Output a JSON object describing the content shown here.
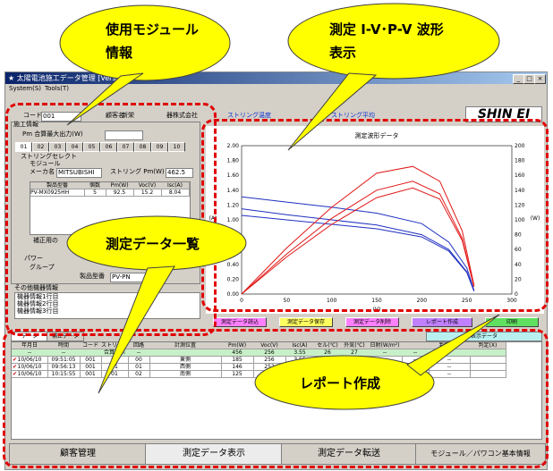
{
  "window": {
    "title": "★ 太陽電池施工データ管理  [Version",
    "menu": [
      "System(S)",
      "Tools(T)"
    ],
    "logo": "SHIN EI",
    "controls": [
      "_",
      "□",
      "×"
    ]
  },
  "header": {
    "code_label": "コード",
    "code_value": "001",
    "customer_label": "顧客名",
    "customer_value": "新栄",
    "company_value": "器株式会社",
    "blue_left": "ストリング温度",
    "blue_right": "ストリング平均"
  },
  "info": {
    "section_label": "施工情報",
    "pm_label": "Pm 合算最大出力(W)",
    "tabs": [
      "01",
      "02",
      "03",
      "04",
      "05",
      "06",
      "07",
      "08",
      "09",
      "10"
    ],
    "string_select": "ストリングセレクト",
    "module_label": "モジュール",
    "maker_label": "メーカ名",
    "maker_value": "MITSUBISHI",
    "string_pm_label": "ストリング Pm(W)",
    "string_pm_value": "462.5",
    "table_headers": [
      "製品型番",
      "個数",
      "Pm(W)",
      "Voc(V)",
      "Isc(A)"
    ],
    "table_row": [
      "PV-MX0925HH",
      "5",
      "92.5",
      "15.2",
      "8.04"
    ],
    "correction_label": "補正用の",
    "power_label": "パワー",
    "group_label": "グループ",
    "product_label": "製品型番",
    "product_value": "PV-PN",
    "other_label": "その他機器情報",
    "other_rows": [
      "機器情報1行目",
      "機器情報2行目",
      "機器情報3行目"
    ]
  },
  "chart_data": {
    "type": "line",
    "title": "測定波形データ",
    "xlabel": "(V)",
    "ylabel_left": "(A)",
    "ylabel_right": "(W)",
    "xlim": [
      0,
      300
    ],
    "ylim_left": [
      0,
      2.0
    ],
    "ylim_right": [
      0,
      200
    ],
    "xticks": [
      "0",
      "50",
      "100",
      "150",
      "200",
      "250",
      "300"
    ],
    "yticks_left": [
      "0.00",
      "0.20",
      "0.40",
      "0.60",
      "0.80",
      "1.00",
      "1.20",
      "1.40",
      "1.60",
      "1.80",
      "2.00"
    ],
    "yticks_right": [
      "0",
      "20",
      "40",
      "60",
      "80",
      "100",
      "120",
      "140",
      "160",
      "180",
      "200"
    ],
    "series": [
      {
        "color": "#2030c0",
        "axis": "left",
        "x": [
          0,
          50,
          100,
          150,
          200,
          230,
          250,
          258
        ],
        "y": [
          1.31,
          1.24,
          1.17,
          1.09,
          0.95,
          0.7,
          0.35,
          0.05
        ]
      },
      {
        "color": "#2030c0",
        "axis": "left",
        "x": [
          0,
          50,
          100,
          150,
          200,
          230,
          250,
          258
        ],
        "y": [
          1.15,
          1.07,
          1.0,
          0.93,
          0.8,
          0.6,
          0.3,
          0.04
        ]
      },
      {
        "color": "#2030c0",
        "axis": "left",
        "x": [
          0,
          50,
          100,
          150,
          200,
          230,
          250,
          258
        ],
        "y": [
          1.06,
          1.0,
          0.94,
          0.88,
          0.77,
          0.58,
          0.29,
          0.04
        ]
      },
      {
        "color": "#e01818",
        "axis": "right",
        "x": [
          0,
          50,
          100,
          150,
          190,
          220,
          245,
          258
        ],
        "y": [
          0,
          62,
          117,
          163,
          172,
          152,
          85,
          12
        ]
      },
      {
        "color": "#e01818",
        "axis": "right",
        "x": [
          0,
          50,
          100,
          150,
          190,
          220,
          245,
          258
        ],
        "y": [
          0,
          54,
          102,
          140,
          152,
          135,
          75,
          10
        ]
      },
      {
        "color": "#e01818",
        "axis": "right",
        "x": [
          0,
          50,
          100,
          150,
          190,
          220,
          245,
          258
        ],
        "y": [
          0,
          50,
          94,
          130,
          143,
          128,
          72,
          10
        ]
      }
    ]
  },
  "action_buttons": [
    "測定データ読込",
    "測定データ保存",
    "測定データ削除",
    "レポート作成",
    "印刷"
  ],
  "data_panel": {
    "tabs": [
      "データ",
      "補正データ"
    ],
    "right_box": "表示データ",
    "headers": [
      "年月日",
      "時間",
      "コード",
      "ストリング",
      "回路",
      "計測位置",
      "Pm(W)",
      "Voc(V)",
      "Isc(A)",
      "セル(℃)",
      "外気(℃)",
      "日射(W/m²)",
      "",
      "判定(%)",
      "判定(X)"
    ],
    "summary": [
      "--",
      "--",
      "",
      "合算表示",
      "--",
      "",
      "456",
      "256",
      "3.55",
      "26",
      "27",
      "--",
      "--",
      "--",
      ""
    ],
    "rows": [
      [
        "10/06/10",
        "09:51:05",
        "001",
        "01",
        "00",
        "東側",
        "185",
        "256",
        "3.55",
        "26",
        "27",
        "--",
        "--",
        "--",
        ""
      ],
      [
        "10/06/10",
        "09:56:13",
        "001",
        "01",
        "01",
        "西側",
        "146",
        "252",
        "1.02",
        "26",
        "27",
        "--",
        "--",
        "--",
        ""
      ],
      [
        "10/06/10",
        "10:15:55",
        "001",
        "01",
        "02",
        "南側",
        "125",
        "250",
        "1.00",
        "26",
        "27",
        "--",
        "--",
        "--",
        ""
      ]
    ]
  },
  "bottom_tabs": [
    "顧客管理",
    "測定データ表示",
    "測定データ転送",
    "モジュール／パワコン基本情報"
  ],
  "callouts": {
    "module_info": "使用モジュール\n情報",
    "waveform": "測定 I-V･P-V 波形\n表示",
    "data_list": "測定データ一覧",
    "report": "レポート作成"
  }
}
